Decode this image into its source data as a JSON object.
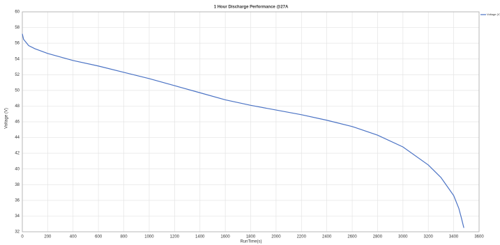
{
  "chart_data": {
    "type": "line",
    "title": "1 Hour Discharge Performance @27A",
    "xlabel": "RunTime(s)",
    "ylabel": "Voltage (V)",
    "x": [
      0,
      10,
      50,
      100,
      200,
      400,
      600,
      800,
      1000,
      1200,
      1400,
      1600,
      1800,
      2000,
      2200,
      2400,
      2600,
      2800,
      3000,
      3200,
      3300,
      3400,
      3440,
      3460,
      3480
    ],
    "series": [
      {
        "name": "Voltage (V)",
        "color": "#4a72c4",
        "values": [
          57.2,
          56.5,
          55.7,
          55.3,
          54.7,
          53.8,
          53.1,
          52.3,
          51.5,
          50.6,
          49.7,
          48.8,
          48.1,
          47.5,
          46.9,
          46.2,
          45.4,
          44.3,
          42.8,
          40.5,
          38.9,
          36.6,
          35.0,
          33.8,
          32.5
        ]
      }
    ],
    "xlim": [
      0,
      3600
    ],
    "xticks": [
      0,
      200,
      400,
      600,
      800,
      1000,
      1200,
      1400,
      1600,
      1800,
      2000,
      2200,
      2400,
      2600,
      2800,
      3000,
      3200,
      3400,
      3600
    ],
    "ylim": [
      32,
      60
    ],
    "yticks": [
      32,
      34,
      36,
      38,
      40,
      42,
      44,
      46,
      48,
      50,
      52,
      54,
      56,
      58,
      60
    ],
    "grid": true,
    "legend": "top-right"
  }
}
